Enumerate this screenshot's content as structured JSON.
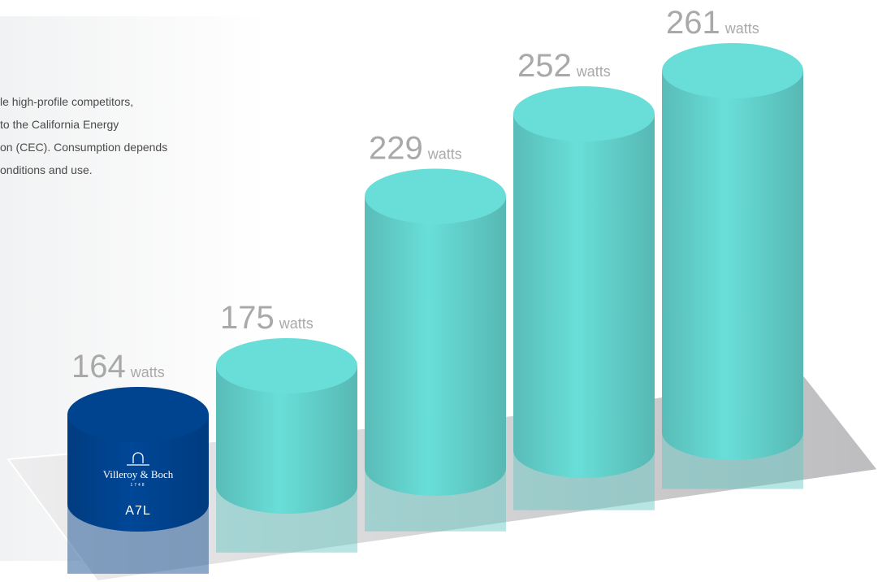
{
  "chart_data": {
    "type": "cylinder",
    "intro_lines": [
      "le high-profile competitors,",
      "to the California Energy",
      "on (CEC). Consumption depends",
      "onditions and use."
    ],
    "categories": [
      "A7L",
      null,
      null,
      null,
      null
    ],
    "brand": "Villeroy & Boch",
    "brand_year": "1748",
    "unit": "watts",
    "values": [
      164,
      175,
      229,
      252,
      261
    ],
    "colors": [
      "#003f87",
      "#5ec6c1",
      "#5ec6c1",
      "#5ec6c1",
      "#5ec6c1"
    ]
  }
}
